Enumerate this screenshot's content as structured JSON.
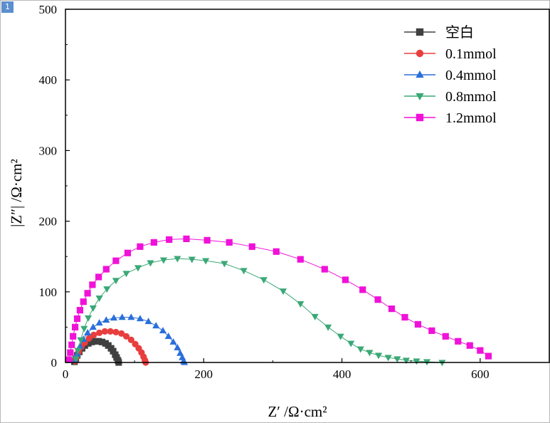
{
  "page_badge": "1",
  "chart_data": {
    "type": "scatter",
    "xlabel": "Z′ /Ω·cm²",
    "ylabel": "|Z″| /Ω·cm²",
    "xlim": [
      0,
      700
    ],
    "ylim": [
      0,
      500
    ],
    "xticks": [
      0,
      200,
      400,
      600
    ],
    "yticks": [
      0,
      100,
      200,
      300,
      400,
      500
    ],
    "grid": false,
    "legend_position": "top-right",
    "series": [
      {
        "name": "空白",
        "color": "#404040",
        "marker": "square",
        "x": [
          13,
          15,
          17,
          20,
          24,
          28,
          33,
          38,
          43,
          48,
          53,
          58,
          62,
          66,
          69,
          72,
          74,
          76,
          77
        ],
        "y": [
          1,
          5,
          10,
          15,
          20,
          24,
          27,
          29,
          30,
          30,
          29,
          27,
          24,
          20,
          16,
          11,
          7,
          3,
          0
        ]
      },
      {
        "name": "0.1mmol",
        "color": "#e83e3e",
        "marker": "circle",
        "x": [
          14,
          16,
          19,
          23,
          28,
          34,
          41,
          49,
          57,
          65,
          73,
          81,
          88,
          95,
          101,
          106,
          110,
          113,
          115,
          116
        ],
        "y": [
          2,
          8,
          15,
          22,
          28,
          34,
          39,
          42,
          44,
          44,
          43,
          41,
          37,
          32,
          26,
          20,
          14,
          8,
          3,
          0
        ]
      },
      {
        "name": "0.4mmol",
        "color": "#2a6fdb",
        "marker": "triangle-up",
        "x": [
          14,
          17,
          21,
          26,
          32,
          40,
          49,
          59,
          70,
          82,
          95,
          108,
          120,
          131,
          141,
          149,
          156,
          162,
          166,
          169,
          171,
          172
        ],
        "y": [
          3,
          12,
          23,
          33,
          42,
          50,
          56,
          60,
          63,
          64,
          64,
          62,
          58,
          52,
          45,
          37,
          29,
          21,
          13,
          7,
          2,
          0
        ]
      },
      {
        "name": "0.8mmol",
        "color": "#3aa876",
        "marker": "triangle-down",
        "x": [
          15,
          18,
          22,
          27,
          33,
          40,
          49,
          60,
          73,
          88,
          105,
          123,
          142,
          162,
          183,
          203,
          230,
          258,
          287,
          315,
          340,
          361,
          380,
          398,
          413,
          427,
          440,
          453,
          467,
          480,
          493,
          508,
          523,
          545
        ],
        "y": [
          5,
          17,
          32,
          48,
          63,
          77,
          91,
          104,
          116,
          126,
          134,
          141,
          145,
          147,
          146,
          144,
          140,
          130,
          117,
          101,
          83,
          65,
          50,
          37,
          27,
          19,
          14,
          10,
          7,
          5,
          3,
          2,
          1,
          0
        ]
      },
      {
        "name": "1.2mmol",
        "color": "#f012d8",
        "marker": "square",
        "x": [
          5,
          7,
          9,
          11,
          14,
          17,
          21,
          26,
          32,
          39,
          48,
          59,
          73,
          90,
          108,
          128,
          150,
          175,
          205,
          237,
          270,
          305,
          340,
          375,
          405,
          430,
          452,
          472,
          491,
          510,
          530,
          550,
          568,
          585,
          600,
          612
        ],
        "y": [
          4,
          14,
          25,
          37,
          50,
          62,
          74,
          86,
          98,
          110,
          121,
          132,
          144,
          155,
          164,
          170,
          174,
          175,
          173,
          170,
          164,
          157,
          146,
          132,
          117,
          103,
          89,
          76,
          64,
          54,
          45,
          37,
          30,
          24,
          17,
          9
        ]
      }
    ]
  }
}
